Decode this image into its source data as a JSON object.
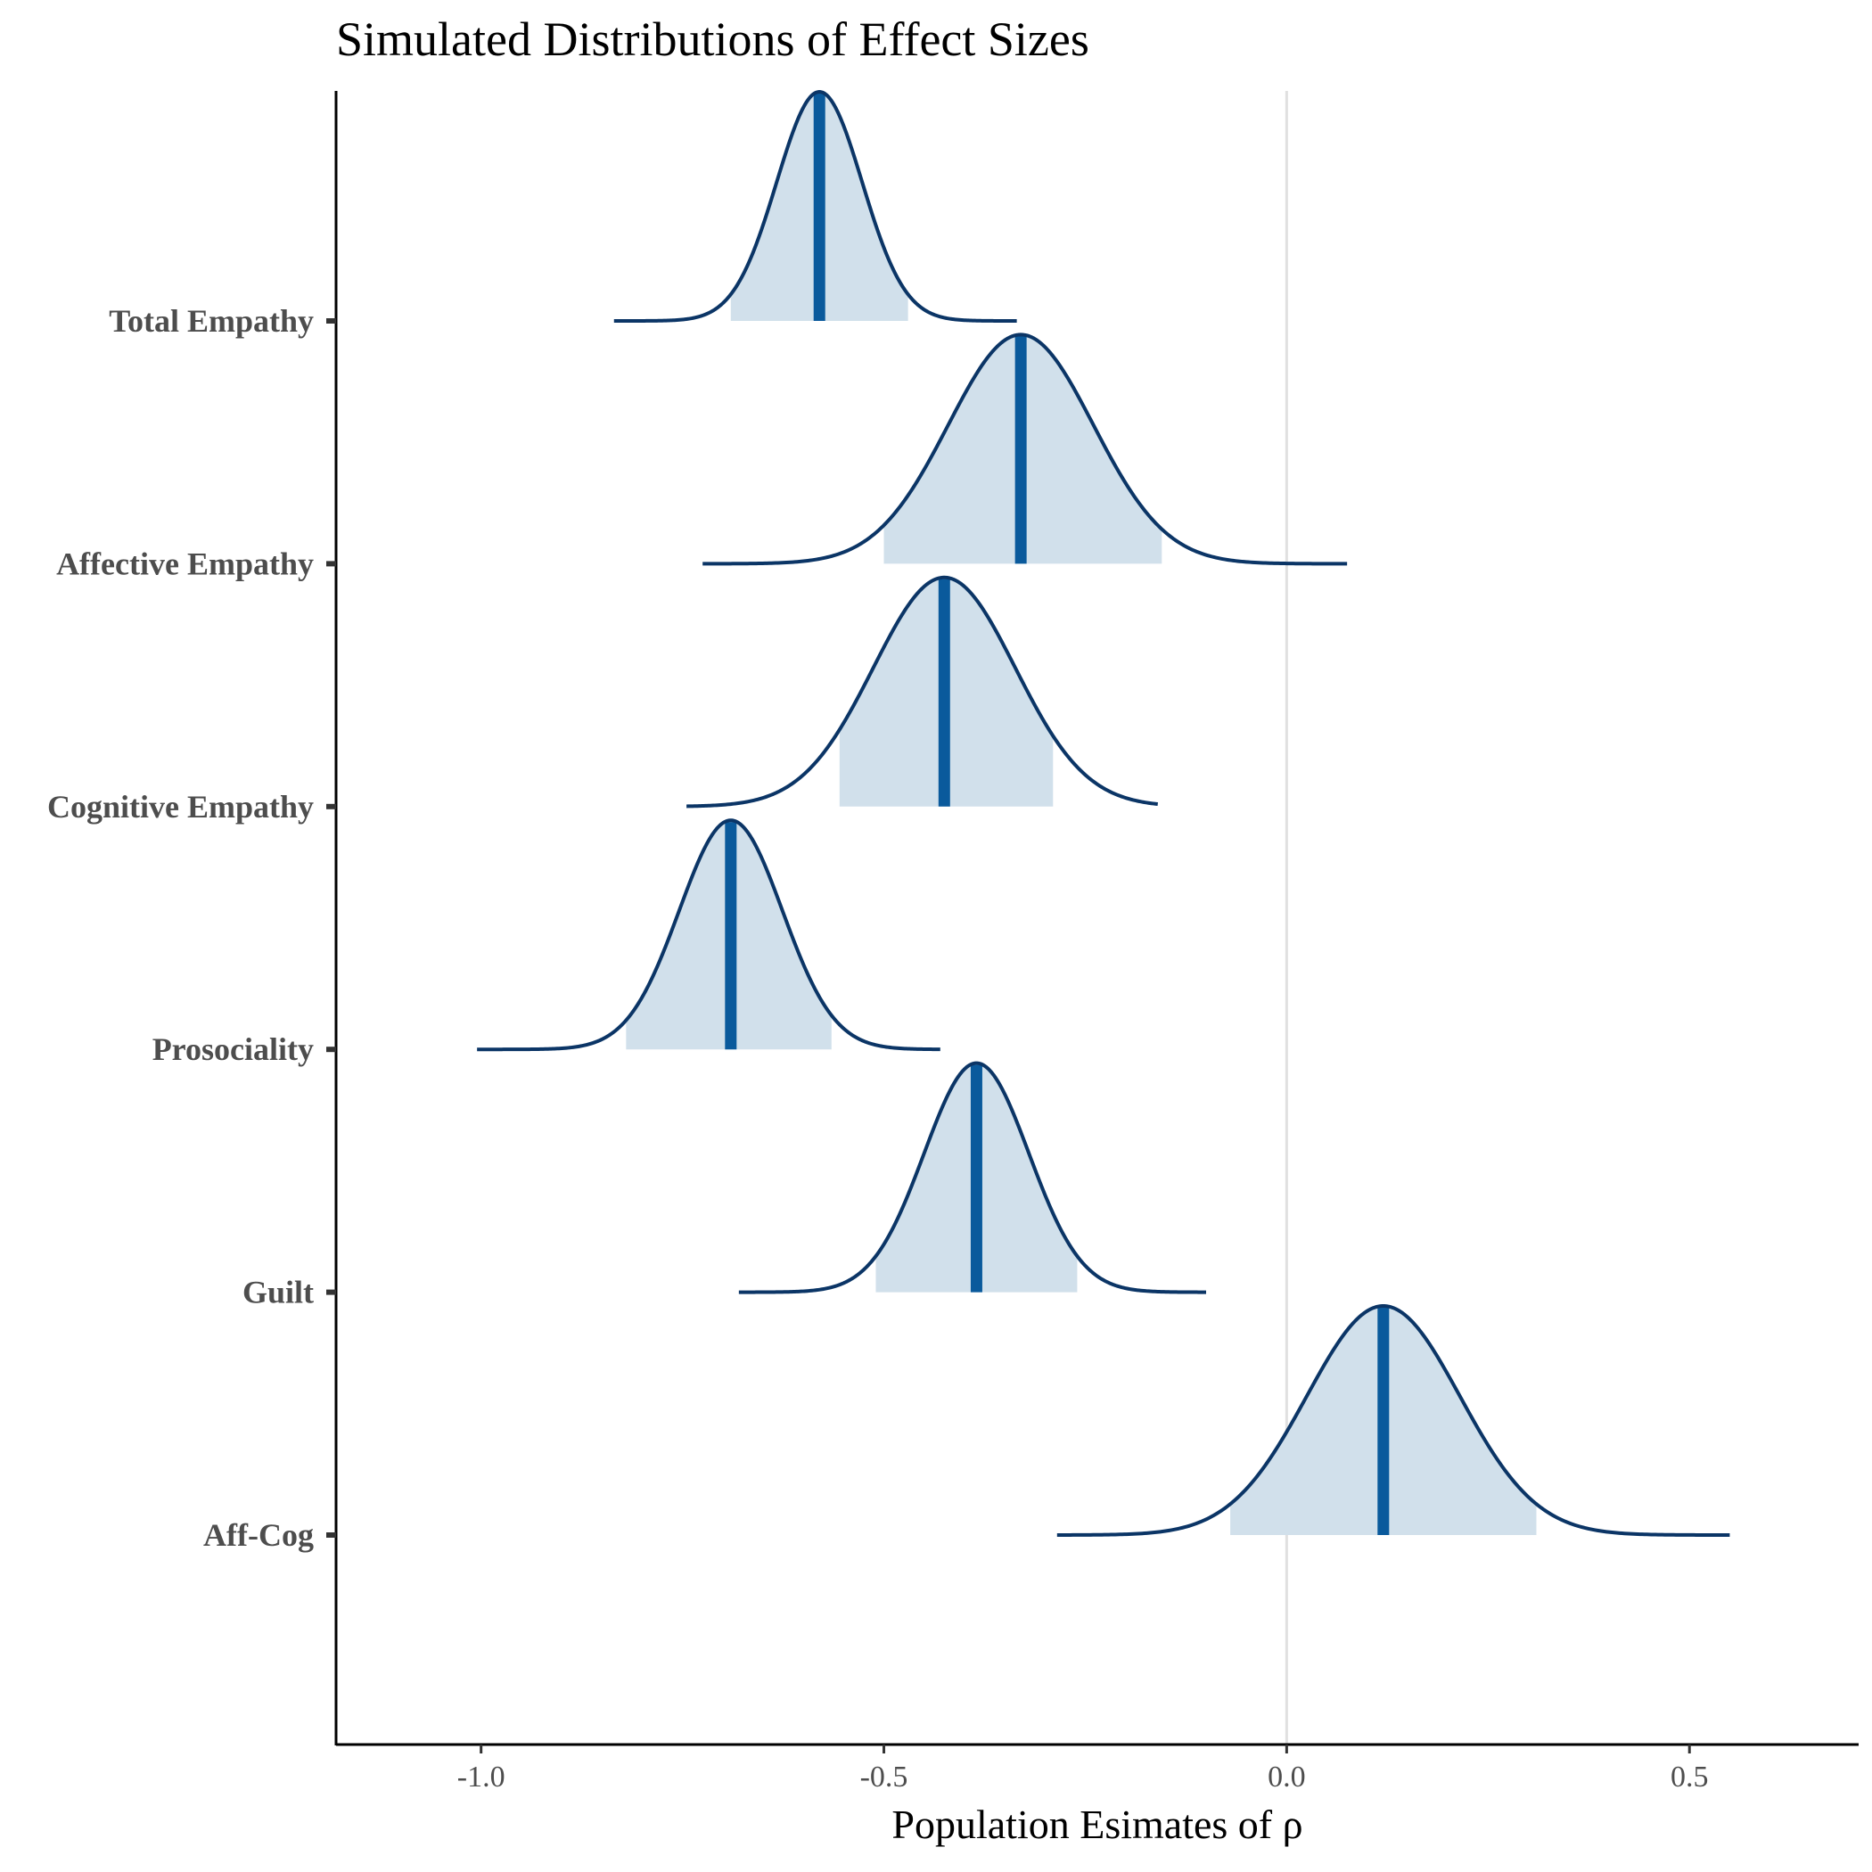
{
  "chart_data": {
    "type": "density-ridge",
    "title": "Simulated Distributions of Effect Sizes",
    "xlabel": "Population Esimates of ρ",
    "ylabel": "",
    "xlim": [
      -1.18,
      0.71
    ],
    "xticks": [
      -1.0,
      -0.5,
      0.0,
      0.5
    ],
    "xtick_labels": [
      "-1.0",
      "-0.5",
      "0.0",
      "0.5"
    ],
    "reference_line_x": 0.0,
    "grid": false,
    "legend": "none",
    "categories": [
      "Total Empathy",
      "Affective Empathy",
      "Cognitive Empathy",
      "Prosociality",
      "Guilt",
      "Aff-Cog"
    ],
    "series": [
      {
        "category": "Total Empathy",
        "median": -0.58,
        "sd": 0.053,
        "interval_95": [
          -0.69,
          -0.47
        ],
        "range": [
          -0.835,
          -0.335
        ]
      },
      {
        "category": "Affective Empathy",
        "median": -0.33,
        "sd": 0.09,
        "interval_95": [
          -0.5,
          -0.155
        ],
        "range": [
          -0.725,
          0.075
        ]
      },
      {
        "category": "Cognitive Empathy",
        "median": -0.425,
        "sd": 0.088,
        "interval_95": [
          -0.555,
          -0.29
        ],
        "range": [
          -0.745,
          -0.16
        ]
      },
      {
        "category": "Prosociality",
        "median": -0.69,
        "sd": 0.064,
        "interval_95": [
          -0.82,
          -0.565
        ],
        "range": [
          -1.005,
          -0.43
        ]
      },
      {
        "category": "Guilt",
        "median": -0.385,
        "sd": 0.065,
        "interval_95": [
          -0.51,
          -0.26
        ],
        "range": [
          -0.68,
          -0.1
        ]
      },
      {
        "category": "Aff-Cog",
        "median": 0.12,
        "sd": 0.095,
        "interval_95": [
          -0.07,
          0.31
        ],
        "range": [
          -0.285,
          0.55
        ]
      }
    ],
    "colors": {
      "outline": "#0b3566",
      "fill": "#d1e0eb",
      "median_line": "#0a5a9c",
      "axis": "#000000",
      "reference_line": "#e0e0e0"
    }
  }
}
